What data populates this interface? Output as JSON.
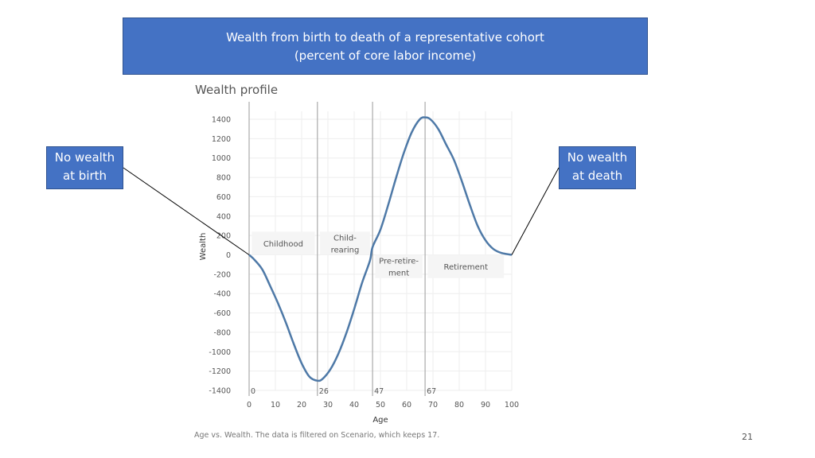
{
  "header": {
    "title_line1": "Wealth from birth to death of a representative cohort",
    "title_line2": "(percent of  core labor income)"
  },
  "callouts": {
    "birth": {
      "line1": "No wealth",
      "line2": "at birth"
    },
    "death": {
      "line1": "No wealth",
      "line2": "at death"
    }
  },
  "caption": "Age vs. Wealth. The data is filtered on Scenario, which keeps 17.",
  "page_number": "21",
  "colors": {
    "title_box": "#4472c4",
    "line": "#4e79a7",
    "region_fill": "#f5f5f5",
    "gridline": "#eeeeee",
    "marker_line": "#aaaaaa"
  },
  "chart_data": {
    "type": "line",
    "title": "Wealth profile",
    "xlabel": "Age",
    "ylabel": "Wealth",
    "xlim": [
      0,
      100
    ],
    "ylim": [
      -1400,
      1400
    ],
    "x_ticks": [
      0,
      10,
      20,
      30,
      40,
      50,
      60,
      70,
      80,
      90,
      100
    ],
    "y_ticks": [
      1400,
      1200,
      1000,
      800,
      600,
      400,
      200,
      0,
      -200,
      -400,
      -600,
      -800,
      -1000,
      -1200,
      -1400
    ],
    "grid": true,
    "series": [
      {
        "x": [
          0,
          2,
          5,
          8,
          11,
          14,
          17,
          20,
          23,
          26,
          28,
          31,
          34,
          37,
          40,
          43,
          46,
          47,
          50,
          53,
          56,
          59,
          62,
          65,
          67,
          69,
          72,
          75,
          78,
          81,
          84,
          87,
          90,
          93,
          96,
          100
        ],
        "y": [
          0,
          -50,
          -150,
          -320,
          -500,
          -700,
          -920,
          -1120,
          -1260,
          -1300,
          -1280,
          -1180,
          -1020,
          -810,
          -560,
          -290,
          -60,
          80,
          260,
          520,
          800,
          1060,
          1270,
          1400,
          1420,
          1400,
          1300,
          1140,
          980,
          760,
          520,
          300,
          150,
          60,
          20,
          0
        ]
      }
    ],
    "markers": [
      {
        "age": 0,
        "label": "0"
      },
      {
        "age": 26,
        "label": "26"
      },
      {
        "age": 47,
        "label": "47"
      },
      {
        "age": 67,
        "label": "67"
      }
    ],
    "regions": [
      {
        "lines": [
          "Childhood"
        ],
        "x_from": 1,
        "x_to": 25,
        "y_from": 240,
        "y_to": 0
      },
      {
        "lines": [
          "Child-",
          "rearing"
        ],
        "x_from": 27,
        "x_to": 46,
        "y_from": 240,
        "y_to": 0
      },
      {
        "lines": [
          "Pre-retire-",
          "ment"
        ],
        "x_from": 48,
        "x_to": 66,
        "y_from": 0,
        "y_to": -240
      },
      {
        "lines": [
          "Retirement"
        ],
        "x_from": 68,
        "x_to": 97,
        "y_from": 0,
        "y_to": -240
      }
    ]
  }
}
